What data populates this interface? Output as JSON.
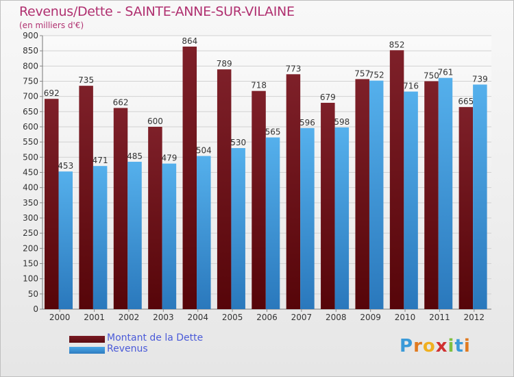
{
  "chart_data": {
    "type": "bar",
    "title": "Revenus/Dette - SAINTE-ANNE-SUR-VILAINE",
    "subtitle": "(en milliers d'€)",
    "categories": [
      "2000",
      "2001",
      "2002",
      "2003",
      "2004",
      "2005",
      "2006",
      "2007",
      "2008",
      "2009",
      "2010",
      "2011",
      "2012"
    ],
    "series": [
      {
        "name": "Montant de la Dette",
        "color": "#7a1a22",
        "values": [
          692,
          735,
          662,
          600,
          864,
          789,
          718,
          773,
          679,
          757,
          852,
          750,
          665
        ]
      },
      {
        "name": "Revenus",
        "color": "#4aa8e8",
        "values": [
          453,
          471,
          485,
          479,
          504,
          530,
          565,
          596,
          598,
          752,
          716,
          761,
          739
        ]
      }
    ],
    "ylim": [
      0,
      900
    ],
    "yticks": [
      0,
      50,
      100,
      150,
      200,
      250,
      300,
      350,
      400,
      450,
      500,
      550,
      600,
      650,
      700,
      750,
      800,
      850,
      900
    ],
    "grid": true,
    "legend_position": "bottom-left",
    "xlabel": "",
    "ylabel": ""
  },
  "logo": {
    "letters": [
      "P",
      "r",
      "o",
      "x",
      "i",
      "t",
      "i"
    ]
  }
}
